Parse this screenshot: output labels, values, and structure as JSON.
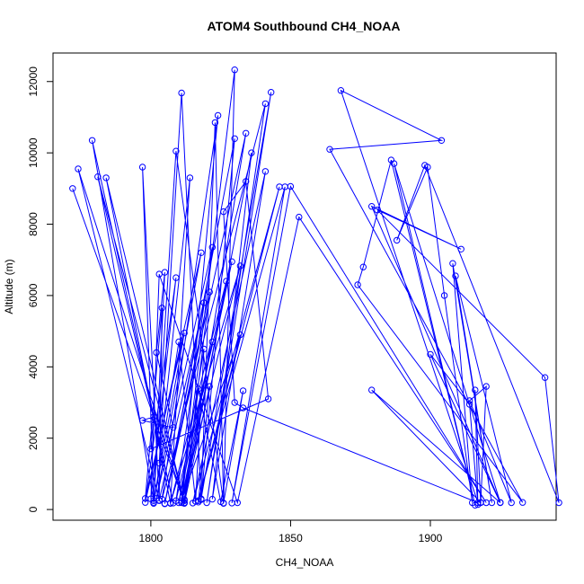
{
  "chart_data": {
    "type": "line",
    "title": "ATOM4 Southbound CH4_NOAA",
    "xlabel": "CH4_NOAA",
    "ylabel": "Altitude (m)",
    "xlim": [
      1765,
      1945
    ],
    "ylim": [
      -300,
      12800
    ],
    "x_ticks": [
      1800,
      1850,
      1900
    ],
    "y_ticks": [
      0,
      2000,
      4000,
      6000,
      8000,
      10000,
      12000
    ],
    "grid": false,
    "legend": "none",
    "series": [
      {
        "color": "#0000ff",
        "marker": "open-circle",
        "points": [
          [
            1772,
            9000
          ],
          [
            1812,
            180
          ],
          [
            1774,
            9550
          ],
          [
            1803,
            250
          ],
          [
            1797,
            9600
          ],
          [
            1801,
            250
          ],
          [
            1779,
            10350
          ],
          [
            1808,
            180
          ],
          [
            1781,
            9330
          ],
          [
            1812,
            190
          ],
          [
            1784,
            9300
          ],
          [
            1807,
            180
          ],
          [
            1814,
            9300
          ],
          [
            1803,
            1300
          ],
          [
            1811,
            11680
          ],
          [
            1818,
            280
          ],
          [
            1823,
            10850
          ],
          [
            1826,
            170
          ],
          [
            1830,
            12330
          ],
          [
            1811,
            200
          ],
          [
            1824,
            11050
          ],
          [
            1804,
            290
          ],
          [
            1841,
            11380
          ],
          [
            1820,
            190
          ],
          [
            1843,
            11700
          ],
          [
            1818,
            300
          ],
          [
            1830,
            10400
          ],
          [
            1805,
            160
          ],
          [
            1834,
            10550
          ],
          [
            1812,
            250
          ],
          [
            1836,
            10000
          ],
          [
            1822,
            290
          ],
          [
            1841,
            9480
          ],
          [
            1815,
            180
          ],
          [
            1846,
            9050
          ],
          [
            1817,
            250
          ],
          [
            1848,
            9050
          ],
          [
            1829,
            180
          ],
          [
            1850,
            9060
          ],
          [
            1920,
            190
          ],
          [
            1853,
            8200
          ],
          [
            1831,
            190
          ],
          [
            1803,
            6600
          ],
          [
            1800,
            300
          ],
          [
            1809,
            6500
          ],
          [
            1798,
            200
          ],
          [
            1818,
            7200
          ],
          [
            1802,
            310
          ],
          [
            1822,
            7350
          ],
          [
            1809,
            250
          ],
          [
            1829,
            6950
          ],
          [
            1811,
            190
          ],
          [
            1832,
            6830
          ],
          [
            1807,
            170
          ],
          [
            1827,
            6400
          ],
          [
            1812,
            280
          ],
          [
            1821,
            6100
          ],
          [
            1805,
            170
          ],
          [
            1819,
            5800
          ],
          [
            1803,
            260
          ],
          [
            1804,
            5650
          ],
          [
            1798,
            310
          ],
          [
            1812,
            4950
          ],
          [
            1801,
            170
          ],
          [
            1810,
            4700
          ],
          [
            1816,
            230
          ],
          [
            1819,
            4500
          ],
          [
            1810,
            190
          ],
          [
            1822,
            4700
          ],
          [
            1811,
            250
          ],
          [
            1832,
            4900
          ],
          [
            1817,
            210
          ],
          [
            1821,
            3450
          ],
          [
            1812,
            170
          ],
          [
            1817,
            3380
          ],
          [
            1825,
            220
          ],
          [
            1833,
            3330
          ],
          [
            1826,
            180
          ],
          [
            1809,
            10050
          ],
          [
            1801,
            200
          ],
          [
            1805,
            6650
          ],
          [
            1802,
            4400
          ],
          [
            1808,
            2300
          ],
          [
            1797,
            2500
          ],
          [
            1801,
            2600
          ],
          [
            1800,
            1700
          ],
          [
            1842,
            3100
          ],
          [
            1834,
            9200
          ],
          [
            1826,
            8350
          ],
          [
            1830,
            3000
          ],
          [
            1833,
            2850
          ],
          [
            1917,
            190
          ],
          [
            1868,
            11750
          ],
          [
            1904,
            10350
          ],
          [
            1864,
            10100
          ],
          [
            1933,
            200
          ],
          [
            1874,
            6300
          ],
          [
            1876,
            6800
          ],
          [
            1886,
            9800
          ],
          [
            1916,
            120
          ],
          [
            1887,
            9700
          ],
          [
            1925,
            200
          ],
          [
            1879,
            8500
          ],
          [
            1911,
            7300
          ],
          [
            1881,
            8400
          ],
          [
            1941,
            3700
          ],
          [
            1946,
            190
          ],
          [
            1898,
            9650
          ],
          [
            1888,
            7550
          ],
          [
            1899,
            9600
          ],
          [
            1905,
            6000
          ],
          [
            1915,
            190
          ],
          [
            1908,
            6900
          ],
          [
            1922,
            190
          ],
          [
            1909,
            6550
          ],
          [
            1929,
            190
          ],
          [
            1914,
            3050
          ],
          [
            1920,
            3450
          ],
          [
            1918,
            190
          ],
          [
            1916,
            3350
          ],
          [
            1917,
            140
          ],
          [
            1914,
            2950
          ],
          [
            1900,
            4350
          ],
          [
            1925,
            190
          ],
          [
            1879,
            3350
          ],
          [
            1918,
            200
          ]
        ]
      }
    ]
  }
}
